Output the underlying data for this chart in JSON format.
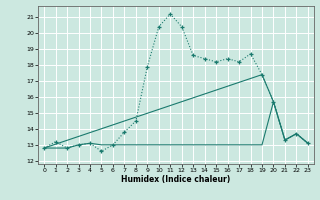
{
  "xlabel": "Humidex (Indice chaleur)",
  "xlim": [
    -0.5,
    23.5
  ],
  "ylim": [
    11.8,
    21.7
  ],
  "yticks": [
    12,
    13,
    14,
    15,
    16,
    17,
    18,
    19,
    20,
    21
  ],
  "xticks": [
    0,
    1,
    2,
    3,
    4,
    5,
    6,
    7,
    8,
    9,
    10,
    11,
    12,
    13,
    14,
    15,
    16,
    17,
    18,
    19,
    20,
    21,
    22,
    23
  ],
  "background_color": "#cce8e0",
  "grid_color": "#ffffff",
  "grid_minor_color": "#e8d0d0",
  "line_color": "#1a7a6e",
  "series1_x": [
    0,
    1,
    2,
    3,
    4,
    5,
    6,
    7,
    8,
    9,
    10,
    11,
    12,
    13,
    14,
    15,
    16,
    17,
    18,
    19,
    20,
    21,
    22,
    23
  ],
  "series1_y": [
    12.8,
    13.2,
    12.8,
    13.0,
    13.1,
    12.6,
    13.0,
    13.8,
    14.5,
    17.9,
    20.4,
    21.2,
    20.4,
    18.6,
    18.4,
    18.2,
    18.4,
    18.2,
    18.7,
    17.4,
    15.7,
    13.3,
    13.7,
    13.1
  ],
  "series2_x": [
    0,
    19,
    20,
    21,
    22,
    23
  ],
  "series2_y": [
    12.8,
    17.4,
    15.7,
    13.3,
    13.7,
    13.1
  ],
  "series3_x": [
    0,
    1,
    2,
    3,
    4,
    5,
    6,
    7,
    8,
    9,
    10,
    11,
    12,
    13,
    14,
    15,
    16,
    17,
    18,
    19,
    20,
    21,
    22,
    23
  ],
  "series3_y": [
    12.8,
    12.8,
    12.8,
    13.0,
    13.1,
    13.0,
    13.0,
    13.0,
    13.0,
    13.0,
    13.0,
    13.0,
    13.0,
    13.0,
    13.0,
    13.0,
    13.0,
    13.0,
    13.0,
    13.0,
    15.7,
    13.3,
    13.7,
    13.1
  ]
}
